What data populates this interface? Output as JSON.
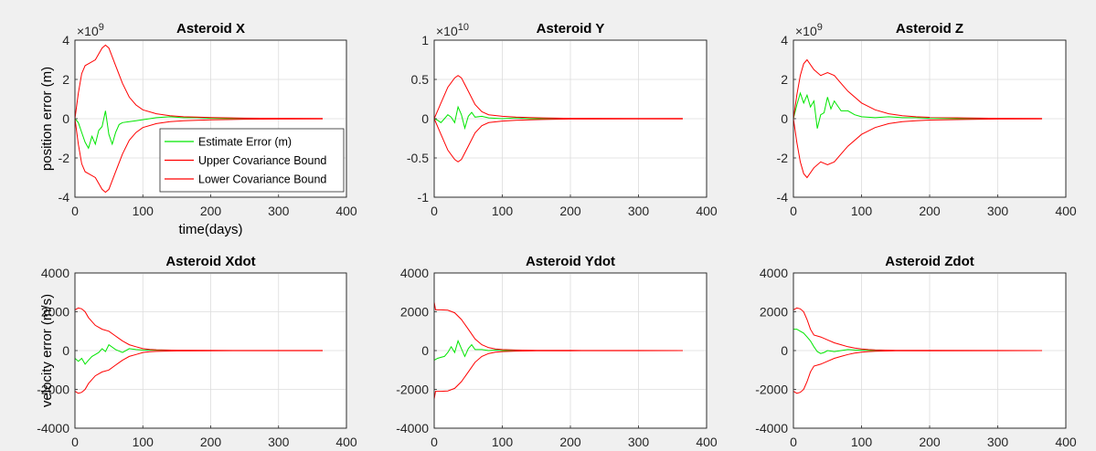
{
  "colors": {
    "estimate": "#00e600",
    "bound": "#ff0000",
    "figure_bg": "#f0f0f0",
    "axes_bg": "#ffffff"
  },
  "chart_data": [
    {
      "type": "line",
      "title": "Asteroid X",
      "xlabel": "time(days)",
      "ylabel": "position error (m)",
      "exponent": {
        "base": "×10",
        "power": "9"
      },
      "xlim": [
        0,
        400
      ],
      "ylim": [
        -4,
        4
      ],
      "xticks": [
        0,
        100,
        200,
        300,
        400
      ],
      "yticks": [
        -4,
        -2,
        0,
        2,
        4
      ],
      "ytick_labels": [
        "-4",
        "-2",
        "0",
        "2",
        "4"
      ],
      "grid": true,
      "legend": {
        "placement": "lower-right",
        "entries": [
          "Estimate Error (m)",
          "Upper Covariance Bound",
          "Lower Covariance Bound"
        ]
      },
      "series": [
        {
          "name": "Estimate Error (m)",
          "role": "estimate",
          "x": [
            0,
            5,
            10,
            15,
            20,
            25,
            30,
            35,
            40,
            45,
            50,
            55,
            60,
            65,
            70,
            80,
            90,
            100,
            120,
            140,
            160,
            180,
            200,
            250,
            300,
            365
          ],
          "y": [
            0,
            -0.2,
            -0.7,
            -1.2,
            -1.5,
            -0.9,
            -1.3,
            -0.6,
            -0.4,
            0.4,
            -0.8,
            -1.3,
            -0.7,
            -0.3,
            -0.2,
            -0.15,
            -0.1,
            -0.05,
            0.05,
            0.1,
            0.05,
            0.05,
            0.02,
            0,
            0,
            0
          ]
        },
        {
          "name": "Upper Covariance Bound",
          "role": "bound",
          "x": [
            0,
            5,
            10,
            15,
            20,
            30,
            40,
            45,
            50,
            60,
            70,
            80,
            90,
            100,
            120,
            140,
            160,
            180,
            200,
            250,
            300,
            365
          ],
          "y": [
            0,
            1.3,
            2.3,
            2.7,
            2.8,
            3.0,
            3.6,
            3.75,
            3.6,
            2.7,
            1.8,
            1.1,
            0.7,
            0.45,
            0.25,
            0.15,
            0.1,
            0.08,
            0.06,
            0.03,
            0.02,
            0.01
          ]
        },
        {
          "name": "Lower Covariance Bound",
          "role": "bound",
          "x": [
            0,
            5,
            10,
            15,
            20,
            30,
            40,
            45,
            50,
            60,
            70,
            80,
            90,
            100,
            120,
            140,
            160,
            180,
            200,
            250,
            300,
            365
          ],
          "y": [
            0,
            -1.3,
            -2.3,
            -2.7,
            -2.8,
            -3.0,
            -3.6,
            -3.75,
            -3.6,
            -2.7,
            -1.8,
            -1.1,
            -0.7,
            -0.45,
            -0.25,
            -0.15,
            -0.1,
            -0.08,
            -0.06,
            -0.03,
            -0.02,
            -0.01
          ]
        }
      ]
    },
    {
      "type": "line",
      "title": "Asteroid Y",
      "xlabel": "",
      "ylabel": "",
      "exponent": {
        "base": "×10",
        "power": "10"
      },
      "xlim": [
        0,
        400
      ],
      "ylim": [
        -1,
        1
      ],
      "xticks": [
        0,
        100,
        200,
        300,
        400
      ],
      "yticks": [
        -1,
        -0.5,
        0,
        0.5,
        1
      ],
      "ytick_labels": [
        "-1",
        "-0.5",
        "0",
        "0.5",
        "1"
      ],
      "grid": true,
      "series": [
        {
          "role": "estimate",
          "x": [
            0,
            5,
            10,
            15,
            20,
            25,
            30,
            35,
            40,
            45,
            50,
            55,
            60,
            70,
            80,
            100,
            120,
            140,
            160,
            200,
            300,
            365
          ],
          "y": [
            0,
            -0.02,
            -0.05,
            0,
            0.05,
            0.02,
            -0.05,
            0.15,
            0.05,
            -0.12,
            0.03,
            0.08,
            0.02,
            0.03,
            0.01,
            0,
            0.01,
            0,
            0,
            0,
            0,
            0
          ]
        },
        {
          "role": "bound",
          "x": [
            0,
            10,
            20,
            30,
            35,
            40,
            50,
            60,
            70,
            80,
            100,
            120,
            140,
            160,
            200,
            300,
            365
          ],
          "y": [
            0,
            0.2,
            0.4,
            0.52,
            0.55,
            0.52,
            0.35,
            0.18,
            0.09,
            0.05,
            0.03,
            0.02,
            0.015,
            0.01,
            0.005,
            0.003,
            0.002
          ]
        },
        {
          "role": "bound",
          "x": [
            0,
            10,
            20,
            30,
            35,
            40,
            50,
            60,
            70,
            80,
            100,
            120,
            140,
            160,
            200,
            300,
            365
          ],
          "y": [
            0,
            -0.2,
            -0.4,
            -0.52,
            -0.55,
            -0.52,
            -0.35,
            -0.18,
            -0.09,
            -0.05,
            -0.03,
            -0.02,
            -0.015,
            -0.01,
            -0.005,
            -0.003,
            -0.002
          ]
        }
      ]
    },
    {
      "type": "line",
      "title": "Asteroid Z",
      "xlabel": "",
      "ylabel": "",
      "exponent": {
        "base": "×10",
        "power": "9"
      },
      "xlim": [
        0,
        400
      ],
      "ylim": [
        -4,
        4
      ],
      "xticks": [
        0,
        100,
        200,
        300,
        400
      ],
      "yticks": [
        -4,
        -2,
        0,
        2,
        4
      ],
      "ytick_labels": [
        "-4",
        "-2",
        "0",
        "2",
        "4"
      ],
      "grid": true,
      "series": [
        {
          "role": "estimate",
          "x": [
            0,
            5,
            10,
            15,
            20,
            25,
            30,
            35,
            40,
            45,
            50,
            55,
            60,
            70,
            80,
            90,
            100,
            120,
            140,
            160,
            180,
            200,
            250,
            300,
            365
          ],
          "y": [
            0,
            0.7,
            1.3,
            0.8,
            1.2,
            0.6,
            0.9,
            -0.5,
            0.2,
            0.3,
            1.1,
            0.5,
            0.9,
            0.4,
            0.4,
            0.2,
            0.1,
            0.05,
            0.1,
            0.05,
            0.05,
            0.02,
            0,
            0,
            0
          ]
        },
        {
          "role": "bound",
          "x": [
            0,
            5,
            10,
            15,
            20,
            30,
            40,
            50,
            60,
            70,
            80,
            100,
            120,
            140,
            160,
            180,
            200,
            250,
            300,
            365
          ],
          "y": [
            0,
            1.2,
            2.2,
            2.8,
            3.0,
            2.5,
            2.2,
            2.35,
            2.2,
            1.8,
            1.4,
            0.8,
            0.45,
            0.25,
            0.15,
            0.1,
            0.07,
            0.04,
            0.02,
            0.01
          ]
        },
        {
          "role": "bound",
          "x": [
            0,
            5,
            10,
            15,
            20,
            30,
            40,
            50,
            60,
            70,
            80,
            100,
            120,
            140,
            160,
            180,
            200,
            250,
            300,
            365
          ],
          "y": [
            0,
            -1.2,
            -2.2,
            -2.8,
            -3.0,
            -2.5,
            -2.2,
            -2.35,
            -2.2,
            -1.8,
            -1.4,
            -0.8,
            -0.45,
            -0.25,
            -0.15,
            -0.1,
            -0.07,
            -0.04,
            -0.02,
            -0.01
          ]
        }
      ]
    },
    {
      "type": "line",
      "title": "Asteroid Xdot",
      "xlabel": "",
      "ylabel": "velocity error (m/s)",
      "xlim": [
        0,
        400
      ],
      "ylim": [
        -4000,
        4000
      ],
      "xticks": [
        0,
        100,
        200,
        300,
        400
      ],
      "yticks": [
        -4000,
        -2000,
        0,
        2000,
        4000
      ],
      "ytick_labels": [
        "-4000",
        "-2000",
        "0",
        "2000",
        "4000"
      ],
      "grid": true,
      "series": [
        {
          "role": "estimate",
          "x": [
            0,
            5,
            10,
            15,
            20,
            25,
            30,
            35,
            40,
            45,
            50,
            60,
            70,
            80,
            90,
            100,
            120,
            150,
            200,
            300,
            365
          ],
          "y": [
            -400,
            -550,
            -400,
            -700,
            -500,
            -300,
            -200,
            -100,
            100,
            -50,
            300,
            50,
            -100,
            100,
            50,
            30,
            20,
            0,
            0,
            0,
            0
          ]
        },
        {
          "role": "bound",
          "x": [
            0,
            5,
            10,
            15,
            20,
            30,
            40,
            50,
            60,
            70,
            80,
            90,
            100,
            110,
            120,
            150,
            200,
            300,
            365
          ],
          "y": [
            2100,
            2200,
            2150,
            2000,
            1700,
            1300,
            1100,
            1000,
            750,
            500,
            300,
            200,
            100,
            60,
            40,
            20,
            10,
            5,
            3
          ]
        },
        {
          "role": "bound",
          "x": [
            0,
            5,
            10,
            15,
            20,
            30,
            40,
            50,
            60,
            70,
            80,
            90,
            100,
            110,
            120,
            150,
            200,
            300,
            365
          ],
          "y": [
            -2100,
            -2200,
            -2150,
            -2000,
            -1700,
            -1300,
            -1100,
            -1000,
            -750,
            -500,
            -300,
            -200,
            -100,
            -60,
            -40,
            -20,
            -10,
            -5,
            -3
          ]
        }
      ]
    },
    {
      "type": "line",
      "title": "Asteroid Ydot",
      "xlabel": "",
      "ylabel": "",
      "xlim": [
        0,
        400
      ],
      "ylim": [
        -4000,
        4000
      ],
      "xticks": [
        0,
        100,
        200,
        300,
        400
      ],
      "yticks": [
        -4000,
        -2000,
        0,
        2000,
        4000
      ],
      "ytick_labels": [
        "-4000",
        "-2000",
        "0",
        "2000",
        "4000"
      ],
      "grid": true,
      "series": [
        {
          "role": "estimate",
          "x": [
            0,
            5,
            10,
            15,
            20,
            25,
            30,
            35,
            40,
            45,
            50,
            55,
            60,
            70,
            80,
            90,
            100,
            120,
            150,
            200,
            300,
            365
          ],
          "y": [
            -500,
            -400,
            -350,
            -300,
            -100,
            200,
            -100,
            500,
            100,
            -300,
            100,
            300,
            50,
            50,
            0,
            30,
            0,
            0,
            0,
            0,
            0,
            0
          ]
        },
        {
          "role": "bound",
          "x": [
            0,
            2,
            5,
            10,
            20,
            30,
            40,
            50,
            60,
            70,
            80,
            90,
            100,
            120,
            150,
            200,
            300,
            365
          ],
          "y": [
            2500,
            2100,
            2100,
            2100,
            2080,
            1950,
            1600,
            1100,
            600,
            300,
            150,
            80,
            50,
            30,
            15,
            8,
            4,
            2
          ]
        },
        {
          "role": "bound",
          "x": [
            0,
            2,
            5,
            10,
            20,
            30,
            40,
            50,
            60,
            70,
            80,
            90,
            100,
            120,
            150,
            200,
            300,
            365
          ],
          "y": [
            -2500,
            -2100,
            -2100,
            -2100,
            -2080,
            -1950,
            -1600,
            -1100,
            -600,
            -300,
            -150,
            -80,
            -50,
            -30,
            -15,
            -8,
            -4,
            -2
          ]
        }
      ]
    },
    {
      "type": "line",
      "title": "Asteroid Zdot",
      "xlabel": "",
      "ylabel": "",
      "xlim": [
        0,
        400
      ],
      "ylim": [
        -4000,
        4000
      ],
      "xticks": [
        0,
        100,
        200,
        300,
        400
      ],
      "yticks": [
        -4000,
        -2000,
        0,
        2000,
        4000
      ],
      "ytick_labels": [
        "-4000",
        "-2000",
        "0",
        "2000",
        "4000"
      ],
      "grid": true,
      "series": [
        {
          "role": "estimate",
          "x": [
            0,
            5,
            10,
            15,
            20,
            25,
            30,
            35,
            40,
            45,
            50,
            60,
            70,
            80,
            90,
            100,
            120,
            150,
            200,
            300,
            365
          ],
          "y": [
            1100,
            1100,
            1000,
            900,
            700,
            500,
            200,
            -50,
            -150,
            -100,
            0,
            -50,
            0,
            50,
            30,
            20,
            0,
            0,
            0,
            0,
            0
          ]
        },
        {
          "role": "bound",
          "x": [
            0,
            5,
            10,
            15,
            20,
            25,
            30,
            40,
            50,
            60,
            70,
            80,
            90,
            100,
            110,
            120,
            150,
            200,
            300,
            365
          ],
          "y": [
            2100,
            2200,
            2150,
            2000,
            1600,
            1100,
            800,
            700,
            550,
            400,
            300,
            200,
            130,
            80,
            50,
            35,
            15,
            8,
            4,
            2
          ]
        },
        {
          "role": "bound",
          "x": [
            0,
            5,
            10,
            15,
            20,
            25,
            30,
            40,
            50,
            60,
            70,
            80,
            90,
            100,
            110,
            120,
            150,
            200,
            300,
            365
          ],
          "y": [
            -2100,
            -2200,
            -2150,
            -2000,
            -1600,
            -1100,
            -800,
            -700,
            -550,
            -400,
            -300,
            -200,
            -130,
            -80,
            -50,
            -35,
            -15,
            -8,
            -4,
            -2
          ]
        }
      ]
    }
  ]
}
